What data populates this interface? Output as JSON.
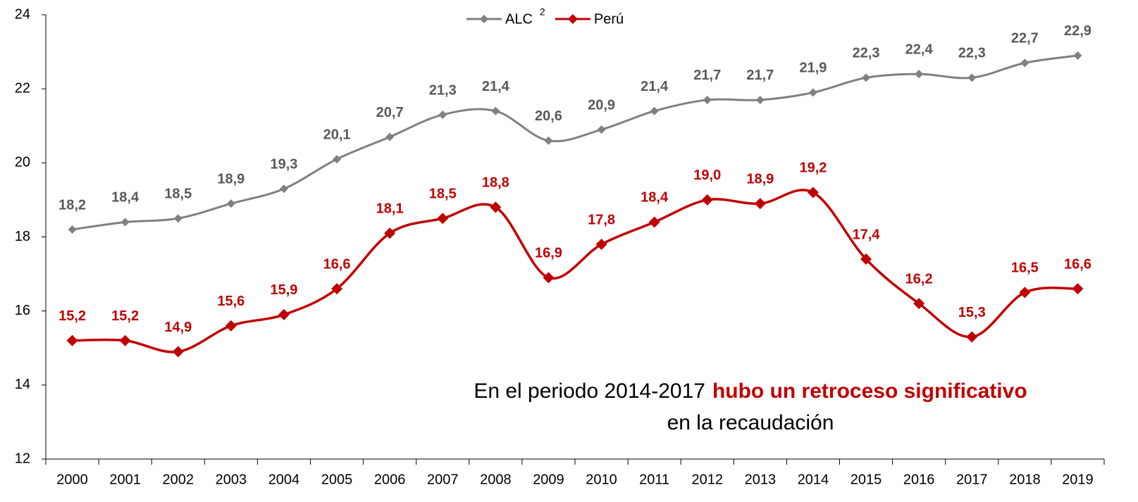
{
  "chart_data": {
    "type": "line",
    "categories": [
      "2000",
      "2001",
      "2002",
      "2003",
      "2004",
      "2005",
      "2006",
      "2007",
      "2008",
      "2009",
      "2010",
      "2011",
      "2012",
      "2013",
      "2014",
      "2015",
      "2016",
      "2017",
      "2018",
      "2019"
    ],
    "series": [
      {
        "name": "ALC",
        "name_superscript": "2",
        "color": "#808080",
        "label_color": "#595959",
        "values": [
          18.2,
          18.4,
          18.5,
          18.9,
          19.3,
          20.1,
          20.7,
          21.3,
          21.4,
          20.6,
          20.9,
          21.4,
          21.7,
          21.7,
          21.9,
          22.3,
          22.4,
          22.3,
          22.7,
          22.9
        ],
        "value_labels": [
          "18,2",
          "18,4",
          "18,5",
          "18,9",
          "19,3",
          "20,1",
          "20,7",
          "21,3",
          "21,4",
          "20,6",
          "20,9",
          "21,4",
          "21,7",
          "21,7",
          "21,9",
          "22,3",
          "22,4",
          "22,3",
          "22,7",
          "22,9"
        ]
      },
      {
        "name": "Perú",
        "color": "#c00000",
        "label_color": "#c00000",
        "values": [
          15.2,
          15.2,
          14.9,
          15.6,
          15.9,
          16.6,
          18.1,
          18.5,
          18.8,
          16.9,
          17.8,
          18.4,
          19.0,
          18.9,
          19.2,
          17.4,
          16.2,
          15.3,
          16.5,
          16.6
        ],
        "value_labels": [
          "15,2",
          "15,2",
          "14,9",
          "15,6",
          "15,9",
          "16,6",
          "18,1",
          "18,5",
          "18,8",
          "16,9",
          "17,8",
          "18,4",
          "19,0",
          "18,9",
          "19,2",
          "17,4",
          "16,2",
          "15,3",
          "16,5",
          "16,6"
        ]
      }
    ],
    "ylim": [
      12,
      24
    ],
    "yticks": [
      12,
      14,
      16,
      18,
      20,
      22,
      24
    ],
    "grid": false,
    "legend": "top",
    "annotation": {
      "text": "En el periodo 2014-2017",
      "highlight": "hubo un retroceso significativo",
      "line2": "en la recaudación"
    }
  }
}
